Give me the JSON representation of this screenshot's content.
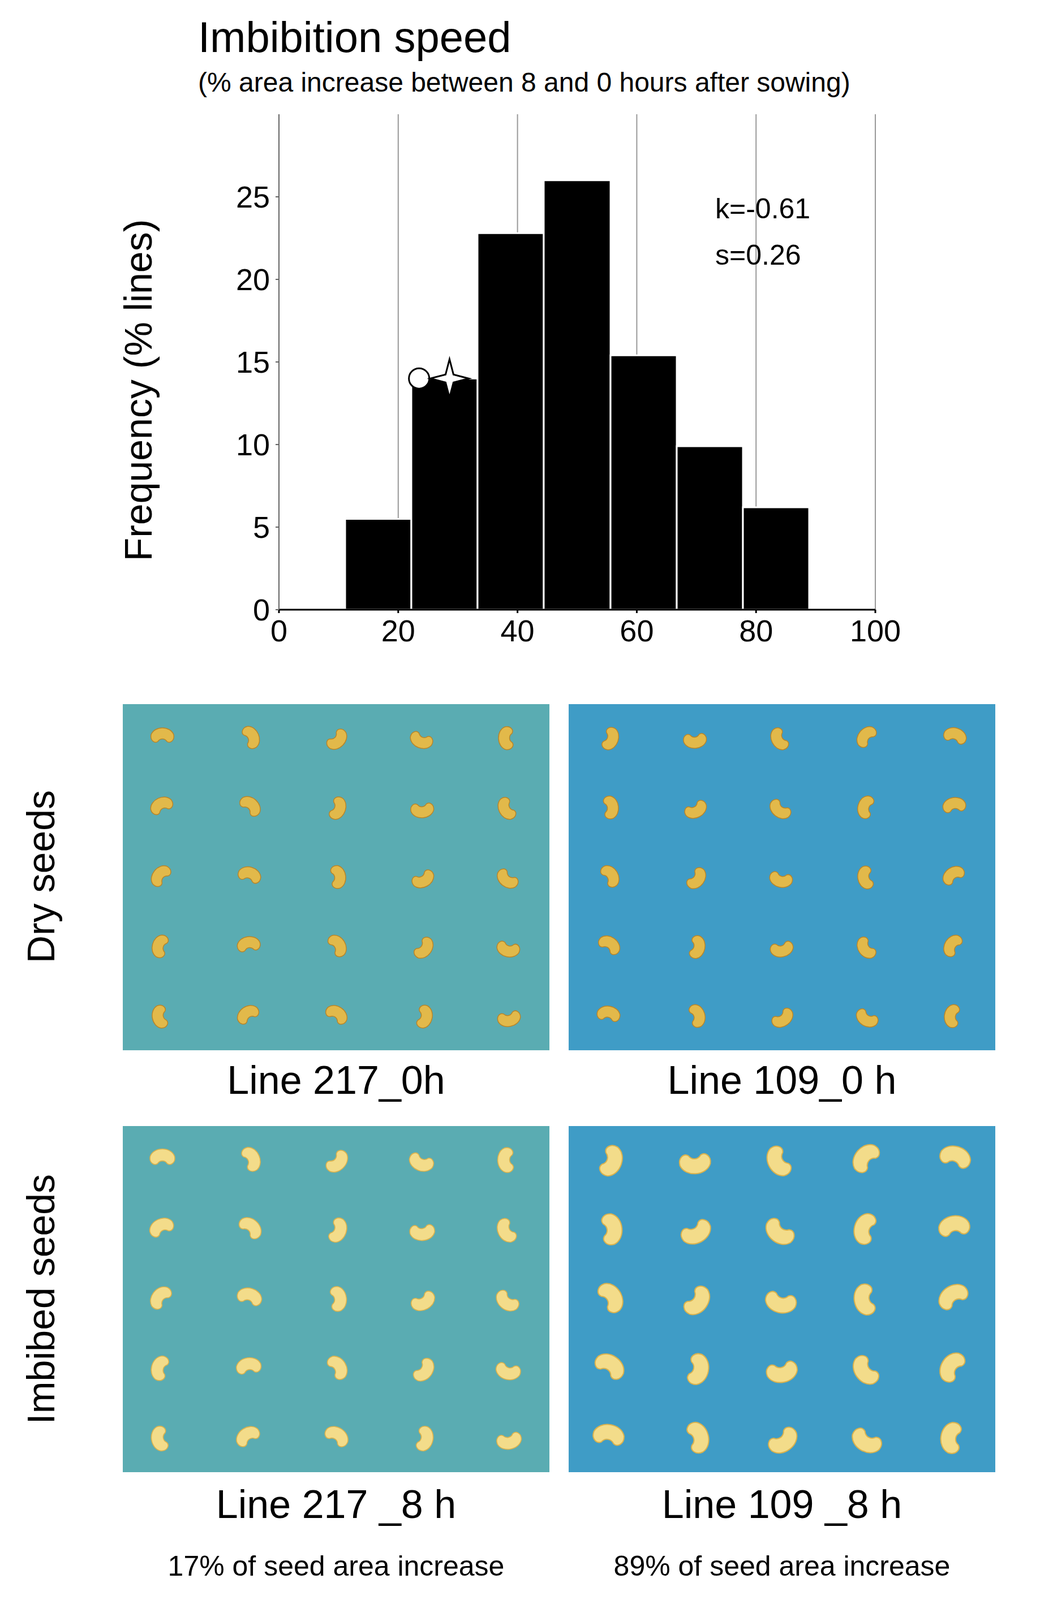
{
  "chart_data": {
    "type": "histogram",
    "title": "Imbibition speed",
    "subtitle": "(% area increase between 8 and 0 hours after sowing)",
    "y_label": "Frequency (% lines)",
    "bins": [
      11.1,
      22.2,
      33.3,
      44.4,
      55.6,
      66.7,
      77.8,
      88.9
    ],
    "values": [
      5.5,
      14,
      22.8,
      26,
      15.4,
      9.9,
      6.2
    ],
    "color": "#000000",
    "xlim": [
      0,
      100
    ],
    "xticks": [
      0,
      20,
      40,
      60,
      80,
      100
    ],
    "ylim": [
      0,
      30
    ],
    "yticks": [
      0,
      5,
      10,
      15,
      20,
      25
    ],
    "grid": true,
    "annotations": [
      "k=-0.61",
      "s=0.26"
    ],
    "series": [
      {
        "type": "scatter",
        "marker": "circle",
        "color": "#ffffff",
        "x": [
          23.5
        ],
        "values": [
          14
        ]
      },
      {
        "type": "scatter",
        "marker": "star",
        "color": "#ffffff",
        "x": [
          28.6
        ],
        "values": [
          14
        ]
      }
    ]
  },
  "panels": {
    "row_labels": [
      "Dry seeds",
      "Imbibed seeds"
    ],
    "images": [
      [
        "Line 217_0h",
        "Line 109_0 h"
      ],
      [
        "Line 217 _8 h",
        "Line 109 _8 h"
      ]
    ],
    "captions": [
      "17% of seed area increase",
      "89% of seed area increase"
    ]
  }
}
